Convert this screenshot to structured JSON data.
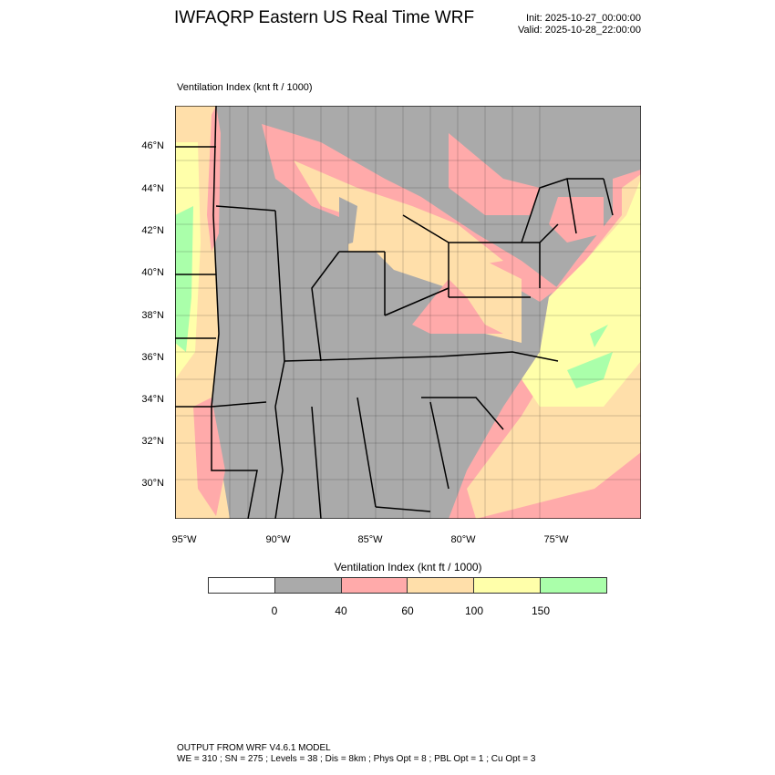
{
  "header": {
    "title": "IWFAQRP Eastern US Real Time WRF",
    "init": "Init: 2025-10-27_00:00:00",
    "valid": "Valid: 2025-10-28_22:00:00"
  },
  "plot": {
    "label": "Ventilation Index   (knt ft / 1000)"
  },
  "axes": {
    "lat_ticks": [
      "46°N",
      "44°N",
      "42°N",
      "40°N",
      "38°N",
      "36°N",
      "34°N",
      "32°N",
      "30°N"
    ],
    "lon_ticks": [
      "95°W",
      "90°W",
      "85°W",
      "80°W",
      "75°W"
    ]
  },
  "legend": {
    "title": "Ventilation Index  (knt ft / 1000)",
    "colors": [
      "#ffffff",
      "#aaaaaa",
      "#ffaaaa",
      "#ffdfaa",
      "#ffffaa",
      "#aaffaa"
    ],
    "labels": [
      "0",
      "40",
      "60",
      "100",
      "150"
    ]
  },
  "footer": {
    "line1": "OUTPUT FROM WRF V4.6.1 MODEL",
    "line2": "WE = 310 ; SN = 275 ; Levels = 38 ; Dis = 8km ; Phys Opt = 8 ; PBL Opt = 1 ; Cu Opt = 3"
  }
}
